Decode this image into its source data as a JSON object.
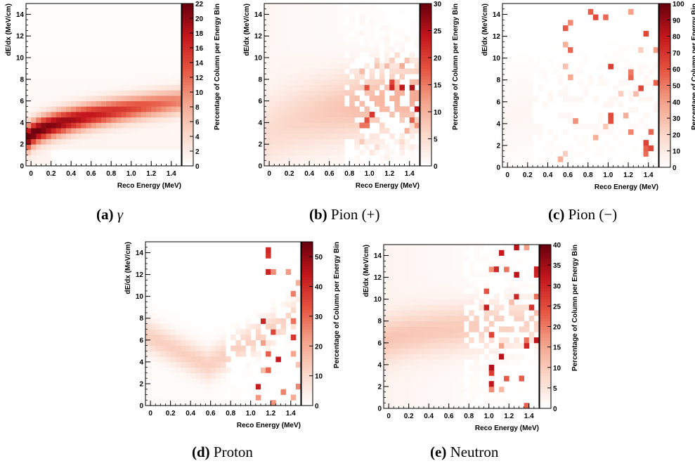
{
  "figure": {
    "panels": [
      {
        "id": "a",
        "caption_label": "(a)",
        "caption_text": "γ",
        "caption_italic": true
      },
      {
        "id": "b",
        "caption_label": "(b)",
        "caption_text": "Pion (+)",
        "caption_italic": false
      },
      {
        "id": "c",
        "caption_label": "(c)",
        "caption_text": "Pion (−)",
        "caption_italic": false
      },
      {
        "id": "d",
        "caption_label": "(d)",
        "caption_text": "Proton",
        "caption_italic": false
      },
      {
        "id": "e",
        "caption_label": "(e)",
        "caption_text": "Neutron",
        "caption_italic": false
      }
    ]
  },
  "chart_data": [
    {
      "type": "heatmap",
      "panel": "a",
      "xlabel": "Reco Energy (MeV)",
      "ylabel": "dE/dx (MeV/cm)",
      "zlabel": "Percentage of Column per Energy Bin",
      "xlim": [
        -0.05,
        1.5
      ],
      "ylim": [
        0,
        15
      ],
      "zlim": [
        0,
        22
      ],
      "x_ticks": [
        "0",
        "0.2",
        "0.4",
        "0.6",
        "0.8",
        "1.0",
        "1.2",
        "1.4"
      ],
      "y_ticks": [
        "0",
        "2",
        "4",
        "6",
        "8",
        "10",
        "12",
        "14"
      ],
      "z_ticks": [
        "0",
        "2",
        "4",
        "6",
        "8",
        "10",
        "12",
        "14",
        "16",
        "18",
        "20",
        "22"
      ],
      "colormap": [
        "#ffffff",
        "#fbd7c9",
        "#f4a28a",
        "#e5533f",
        "#c4161c",
        "#67000d"
      ],
      "pattern": "gamma band",
      "band_start": 2.2,
      "band_end": 6.0,
      "band_width": 0.8,
      "peak_value": 22
    },
    {
      "type": "heatmap",
      "panel": "b",
      "xlabel": "Reco Energy (MeV)",
      "ylabel": "dE/dx (MeV/cm)",
      "zlabel": "Percentage of Column per Energy Bin",
      "xlim": [
        -0.05,
        1.5
      ],
      "ylim": [
        0,
        15
      ],
      "zlim": [
        0,
        30
      ],
      "x_ticks": [
        "0",
        "0.2",
        "0.4",
        "0.6",
        "0.8",
        "1.0",
        "1.2",
        "1.4"
      ],
      "y_ticks": [
        "0",
        "2",
        "4",
        "6",
        "8",
        "10",
        "12",
        "14"
      ],
      "z_ticks": [
        "0",
        "5",
        "10",
        "15",
        "20",
        "25",
        "30"
      ],
      "colormap": [
        "#ffffff",
        "#fbd7c9",
        "#f4a28a",
        "#e5533f",
        "#c4161c",
        "#67000d"
      ],
      "pattern": "broad cluster",
      "band_start": 2.5,
      "band_end": 6.5,
      "band_width": 2.2,
      "peak_value": 30
    },
    {
      "type": "heatmap",
      "panel": "c",
      "xlabel": "Reco Energy (MeV)",
      "ylabel": "dE/dx (MeV/cm)",
      "zlabel": "Percentage of Column per Energy Bin",
      "xlim": [
        -0.05,
        1.5
      ],
      "ylim": [
        0,
        15
      ],
      "zlim": [
        0,
        100
      ],
      "x_ticks": [
        "0",
        "0.2",
        "0.4",
        "0.6",
        "0.8",
        "1.0",
        "1.2",
        "1.4"
      ],
      "y_ticks": [
        "0",
        "2",
        "4",
        "6",
        "8",
        "10",
        "12",
        "14"
      ],
      "z_ticks": [
        "0",
        "10",
        "20",
        "30",
        "40",
        "50",
        "60",
        "70",
        "80",
        "90",
        "100"
      ],
      "colormap": [
        "#ffffff",
        "#fbd7c9",
        "#f4a28a",
        "#e5533f",
        "#c4161c",
        "#67000d"
      ],
      "pattern": "sparse",
      "band_start": 4.0,
      "band_end": 6.5,
      "band_width": 2.5,
      "peak_value": 100
    },
    {
      "type": "heatmap",
      "panel": "d",
      "xlabel": "Reco Energy (MeV)",
      "ylabel": "dE/dx (MeV/cm)",
      "zlabel": "Percentage of Column per Energy Bin",
      "xlim": [
        -0.05,
        1.5
      ],
      "ylim": [
        0,
        15
      ],
      "zlim": [
        0,
        55
      ],
      "x_ticks": [
        "0",
        "0.2",
        "0.4",
        "0.6",
        "0.8",
        "1.0",
        "1.2",
        "1.4"
      ],
      "y_ticks": [
        "0",
        "2",
        "4",
        "6",
        "8",
        "10",
        "12",
        "14"
      ],
      "z_ticks": [
        "0",
        "10",
        "20",
        "30",
        "40",
        "50"
      ],
      "colormap": [
        "#ffffff",
        "#fbd7c9",
        "#f4a28a",
        "#e5533f",
        "#c4161c",
        "#67000d"
      ],
      "pattern": "u-shape",
      "band_start": 6.0,
      "band_end": 9.0,
      "band_width": 1.2,
      "peak_value": 55
    },
    {
      "type": "heatmap",
      "panel": "e",
      "xlabel": "Reco Energy (MeV)",
      "ylabel": "dE/dx (MeV/cm)",
      "zlabel": "Percentage of Column per Energy Bin",
      "xlim": [
        -0.05,
        1.5
      ],
      "ylim": [
        0,
        15
      ],
      "zlim": [
        0,
        40
      ],
      "x_ticks": [
        "0",
        "0.2",
        "0.4",
        "0.6",
        "0.8",
        "1.0",
        "1.2",
        "1.4"
      ],
      "y_ticks": [
        "0",
        "2",
        "4",
        "6",
        "8",
        "10",
        "12",
        "14"
      ],
      "z_ticks": [
        "0",
        "5",
        "10",
        "15",
        "20",
        "25",
        "30",
        "35",
        "40"
      ],
      "colormap": [
        "#ffffff",
        "#fbd7c9",
        "#f4a28a",
        "#e5533f",
        "#c4161c",
        "#67000d"
      ],
      "pattern": "flat band",
      "band_start": 6.0,
      "band_end": 8.0,
      "band_width": 1.5,
      "peak_value": 40
    }
  ]
}
